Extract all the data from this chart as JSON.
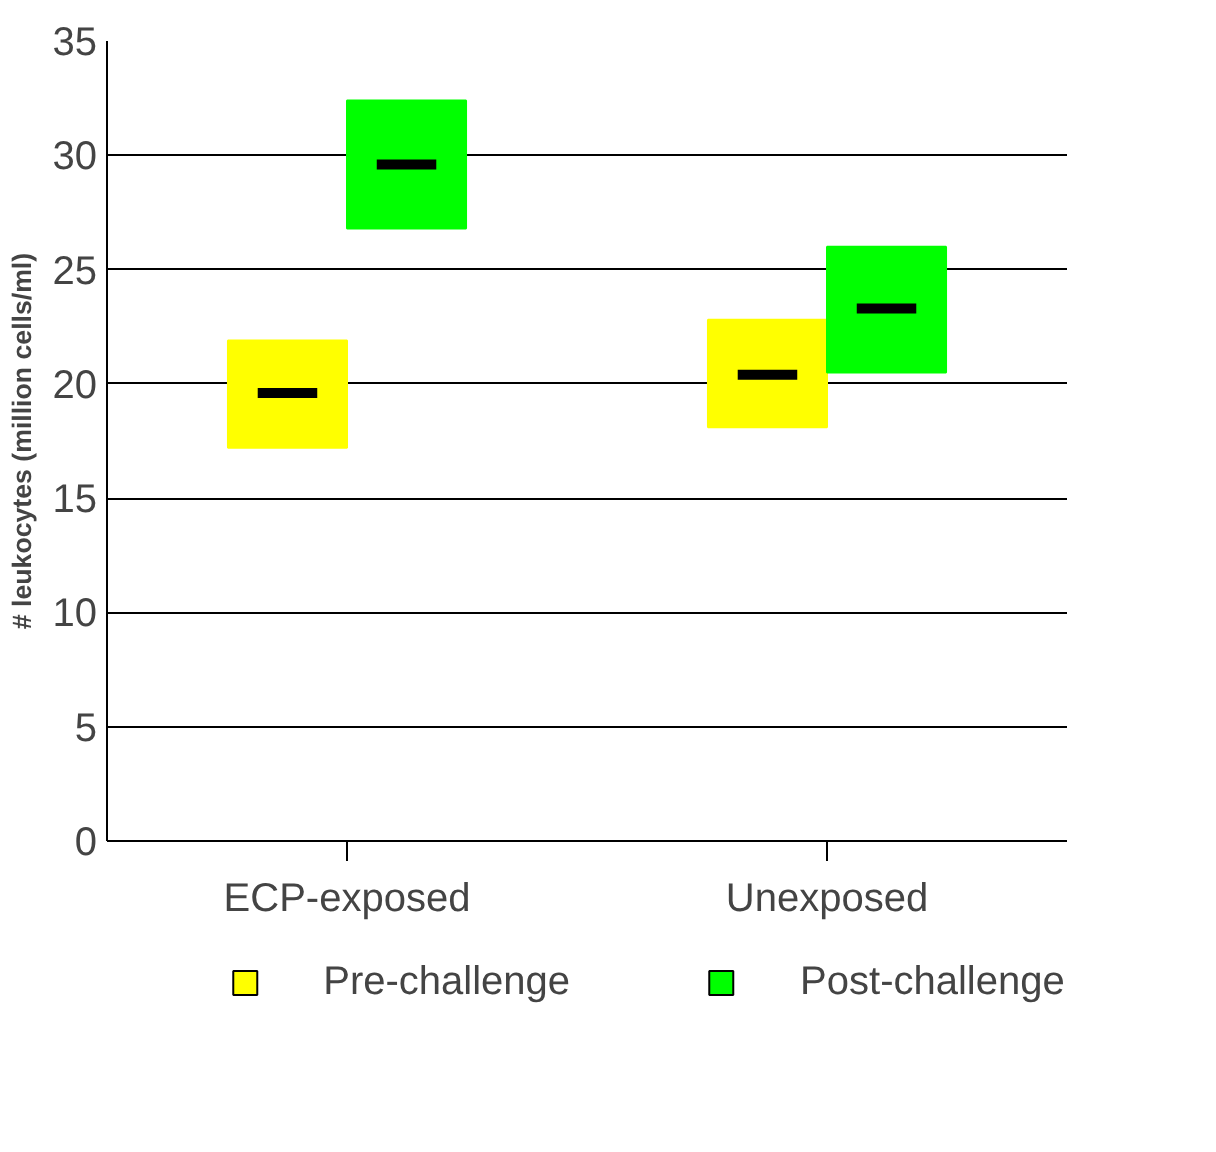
{
  "chart_data": {
    "type": "box",
    "ylabel": "# leukocytes (million cells/ml)",
    "categories": [
      "ECP-exposed",
      "Unexposed"
    ],
    "ylim": [
      0,
      35
    ],
    "yticks": [
      0,
      5,
      10,
      15,
      20,
      25,
      30,
      35
    ],
    "grid": "y",
    "legend": "bottom",
    "series": [
      {
        "name": "Pre-challenge",
        "color": "#ffff00",
        "boxes": [
          {
            "low": 17.2,
            "q1": 17.2,
            "median": 19.6,
            "q3": 21.9,
            "high": 21.9
          },
          {
            "low": 18.1,
            "q1": 18.1,
            "median": 20.4,
            "q3": 22.8,
            "high": 22.8
          }
        ]
      },
      {
        "name": "Post-challenge",
        "color": "#00ff00",
        "boxes": [
          {
            "low": 26.8,
            "q1": 26.8,
            "median": 29.6,
            "q3": 32.4,
            "high": 32.4
          },
          {
            "low": 20.5,
            "q1": 20.5,
            "median": 23.3,
            "q3": 26.0,
            "high": 26.0
          }
        ]
      }
    ]
  }
}
